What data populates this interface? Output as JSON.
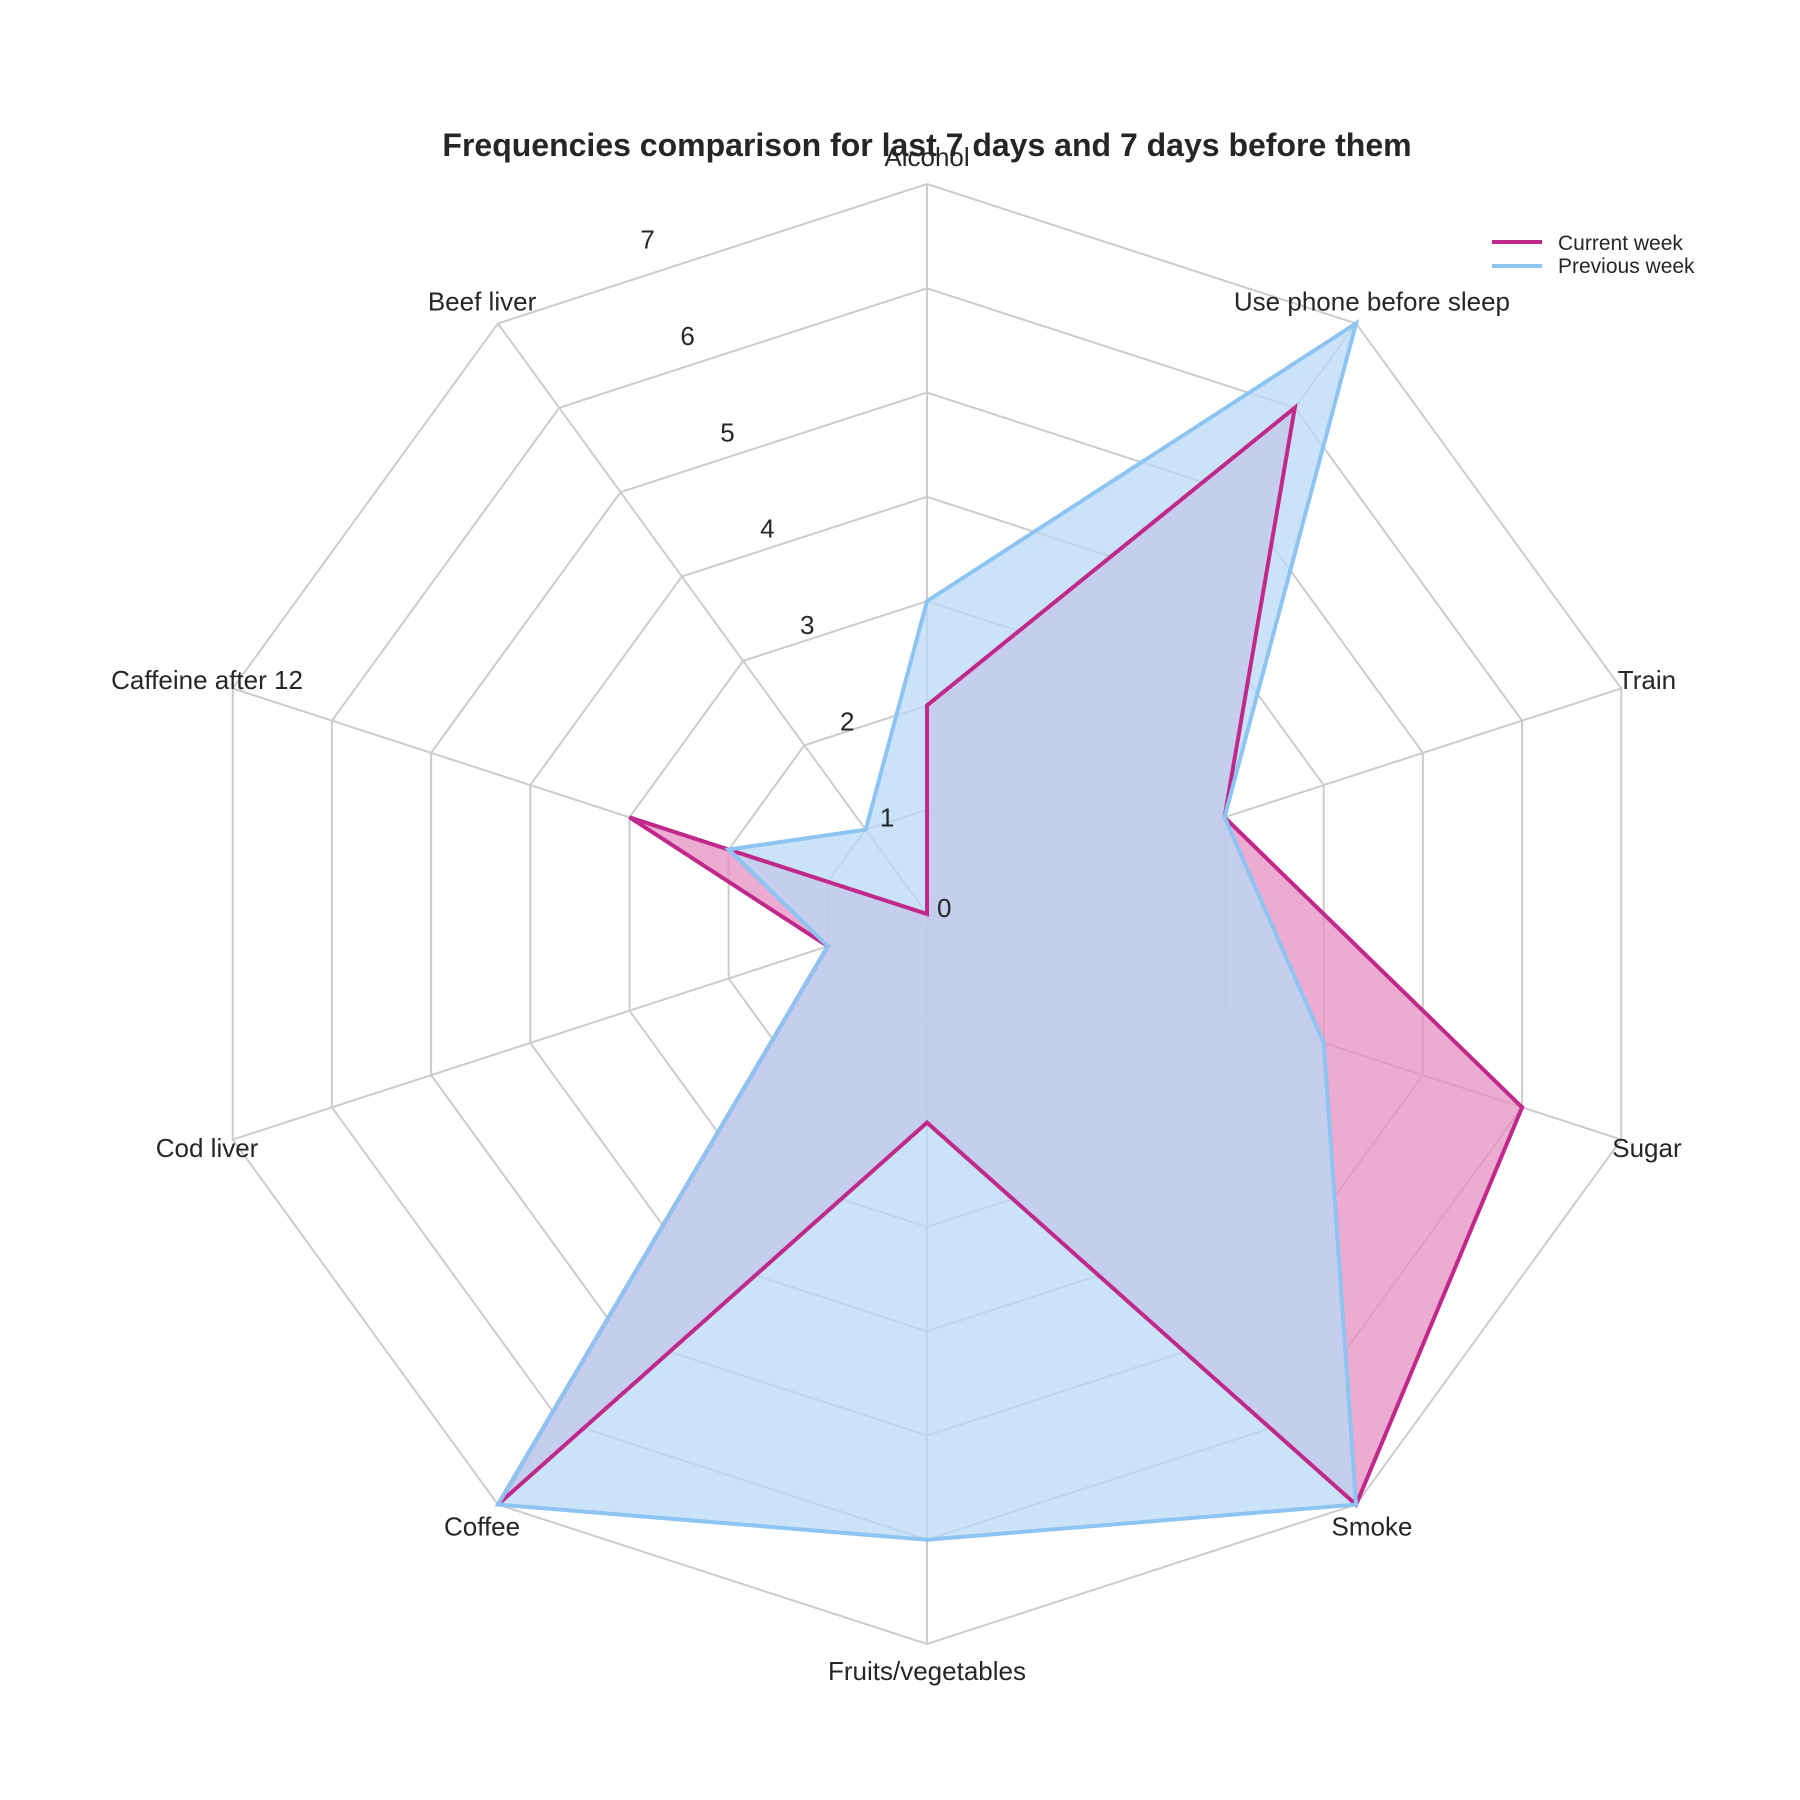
{
  "chart_data": {
    "type": "radar",
    "title": "Frequencies comparison for last 7 days and 7 days before them",
    "categories": [
      "Alcohol",
      "Use phone before sleep",
      "Train",
      "Sugar",
      "Smoke",
      "Fruits/vegetables",
      "Coffee",
      "Cod liver",
      "Caffeine after 12",
      "Beef liver"
    ],
    "radial_ticks": [
      "0",
      "1",
      "2",
      "3",
      "4",
      "5",
      "6",
      "7"
    ],
    "rlim": [
      0,
      7
    ],
    "grid": true,
    "legend_position": "top-right",
    "series": [
      {
        "name": "Current week",
        "color": "#c0288a",
        "fill_color": "#e68fc1",
        "values": [
          2,
          6,
          3,
          6,
          7,
          2,
          7,
          1,
          3,
          0
        ]
      },
      {
        "name": "Previous week",
        "color": "#8ec4f2",
        "fill_color": "#b9d9f7",
        "values": [
          3,
          7,
          3,
          4,
          7,
          6,
          7,
          1,
          2,
          1
        ]
      }
    ]
  }
}
